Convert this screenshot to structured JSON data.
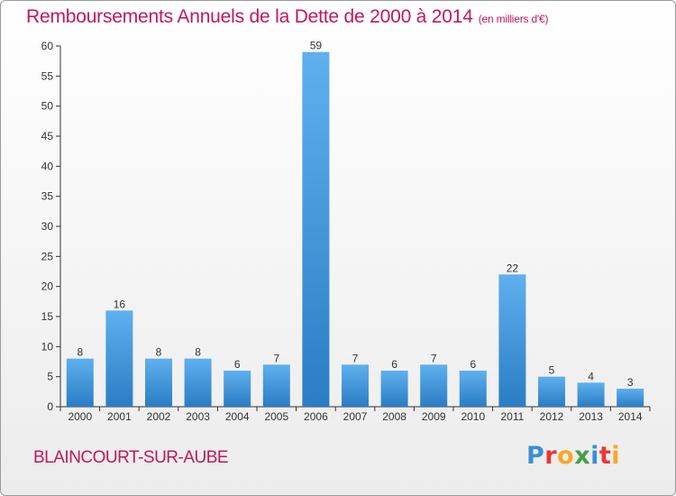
{
  "title": "Remboursements Annuels de la Dette de 2000 à 2014",
  "subtitle": "(en milliers d'€)",
  "commune": "BLAINCOURT-SUR-AUBE",
  "brand": {
    "text": "Proxiti",
    "letters": [
      {
        "ch": "P",
        "color": "#3a8fd6"
      },
      {
        "ch": "r",
        "color": "#e53935"
      },
      {
        "ch": "o",
        "color": "#f9a825"
      },
      {
        "ch": "x",
        "color": "#43a047"
      },
      {
        "ch": "i",
        "color": "#3a8fd6"
      },
      {
        "ch": "t",
        "color": "#e53935"
      },
      {
        "ch": "i",
        "color": "#f9a825"
      }
    ]
  },
  "colors": {
    "title": "#c2185b",
    "bar_light": "#5fb0ee",
    "bar_dark": "#2a7dc4",
    "grid": "#333333"
  },
  "chart_data": {
    "type": "bar",
    "categories": [
      "2000",
      "2001",
      "2002",
      "2003",
      "2004",
      "2005",
      "2006",
      "2007",
      "2008",
      "2009",
      "2010",
      "2011",
      "2012",
      "2013",
      "2014"
    ],
    "values": [
      8,
      16,
      8,
      8,
      6,
      7,
      59,
      7,
      6,
      7,
      6,
      22,
      5,
      4,
      3
    ],
    "title": "Remboursements Annuels de la Dette de 2000 à 2014",
    "xlabel": "",
    "ylabel": "",
    "ylim": [
      0,
      60
    ],
    "yticks": [
      0,
      5,
      10,
      15,
      20,
      25,
      30,
      35,
      40,
      45,
      50,
      55,
      60
    ],
    "grid": false,
    "legend": "none"
  }
}
